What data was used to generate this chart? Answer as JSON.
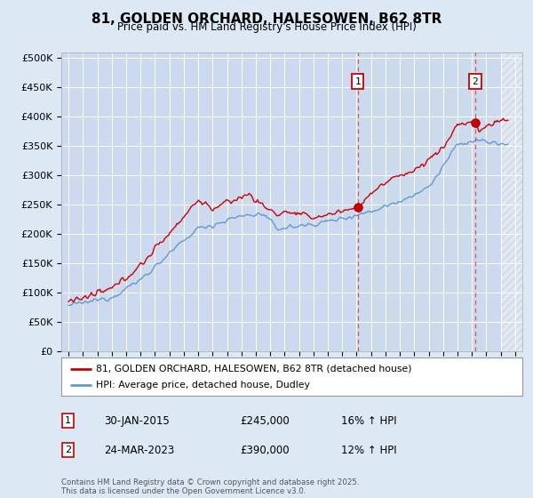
{
  "title": "81, GOLDEN ORCHARD, HALESOWEN, B62 8TR",
  "subtitle": "Price paid vs. HM Land Registry's House Price Index (HPI)",
  "ylabel_ticks": [
    "£0",
    "£50K",
    "£100K",
    "£150K",
    "£200K",
    "£250K",
    "£300K",
    "£350K",
    "£400K",
    "£450K",
    "£500K"
  ],
  "ytick_values": [
    0,
    50000,
    100000,
    150000,
    200000,
    250000,
    300000,
    350000,
    400000,
    450000,
    500000
  ],
  "ylim": [
    0,
    510000
  ],
  "xlim_start": 1994.5,
  "xlim_end": 2026.5,
  "background_color": "#dde8f5",
  "plot_bg": "#dde8f5",
  "plot_bg_main": "#ccd9ee",
  "grid_color": "#ffffff",
  "red_line_color": "#cc0000",
  "blue_line_color": "#6699cc",
  "shade_color": "#dde8f5",
  "hatch_color": "#bbbbbb",
  "marker1_date": 2015.08,
  "marker2_date": 2023.23,
  "marker1_value": 245000,
  "marker2_value": 390000,
  "annotation1": {
    "label": "1",
    "date_str": "30-JAN-2015",
    "price": "£245,000",
    "hpi": "16% ↑ HPI"
  },
  "annotation2": {
    "label": "2",
    "date_str": "24-MAR-2023",
    "price": "£390,000",
    "hpi": "12% ↑ HPI"
  },
  "legend_red": "81, GOLDEN ORCHARD, HALESOWEN, B62 8TR (detached house)",
  "legend_blue": "HPI: Average price, detached house, Dudley",
  "footer": "Contains HM Land Registry data © Crown copyright and database right 2025.\nThis data is licensed under the Open Government Licence v3.0.",
  "xtick_years": [
    1995,
    1996,
    1997,
    1998,
    1999,
    2000,
    2001,
    2002,
    2003,
    2004,
    2005,
    2006,
    2007,
    2008,
    2009,
    2010,
    2011,
    2012,
    2013,
    2014,
    2015,
    2016,
    2017,
    2018,
    2019,
    2020,
    2021,
    2022,
    2023,
    2024,
    2025,
    2026
  ],
  "data_end_year": 2025.0
}
